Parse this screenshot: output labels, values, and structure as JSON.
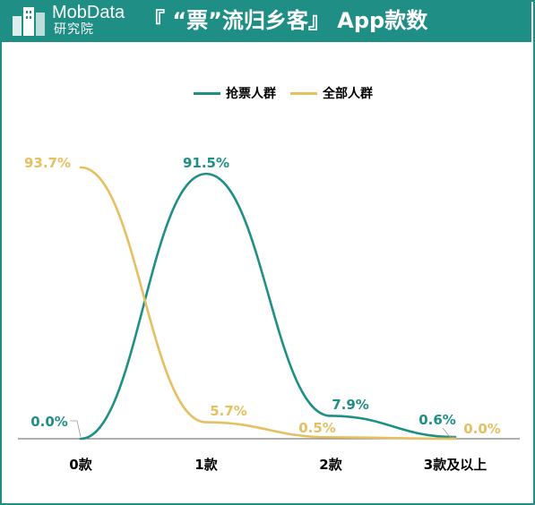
{
  "header": {
    "brand": "MobData",
    "brand_sub": "研究院",
    "title": "『 “票”流归乡客』 App款数"
  },
  "colors": {
    "header_bg": "#1f8f86",
    "series_teal": "#1f8f86",
    "series_gold": "#e6bf60"
  },
  "chart_data": {
    "type": "line",
    "title": "『 “票”流归乡客』 App款数",
    "categories": [
      "0款",
      "1款",
      "2款",
      "3款及以上"
    ],
    "series": [
      {
        "name": "抢票人群",
        "values": [
          0.0,
          91.5,
          7.9,
          0.6
        ],
        "labels": [
          "0.0%",
          "91.5%",
          "7.9%",
          "0.6%"
        ],
        "color": "#1f8f86"
      },
      {
        "name": "全部人群",
        "values": [
          93.7,
          5.7,
          0.5,
          0.0
        ],
        "labels": [
          "93.7%",
          "5.7%",
          "0.5%",
          "0.0%"
        ],
        "color": "#e6bf60"
      }
    ],
    "ylim": [
      0,
      100
    ],
    "smooth": true,
    "grid": false,
    "legend": "top-center"
  }
}
